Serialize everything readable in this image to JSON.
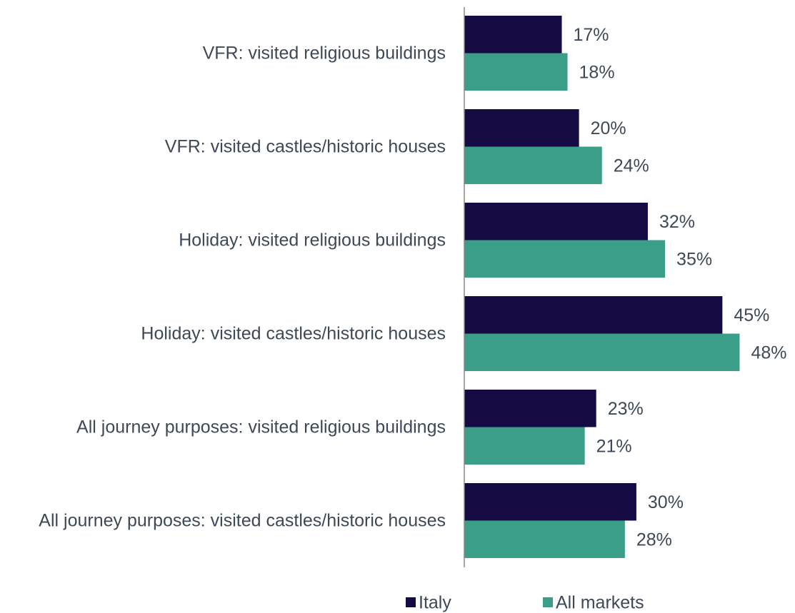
{
  "chart_data": {
    "type": "bar",
    "orientation": "horizontal",
    "categories": [
      "VFR: visited religious buildings",
      "VFR: visited castles/historic houses",
      "Holiday: visited religious buildings",
      "Holiday: visited castles/historic houses",
      "All journey purposes: visited religious buildings",
      "All journey purposes: visited castles/historic houses"
    ],
    "series": [
      {
        "name": "Italy",
        "color": "#150b42",
        "values": [
          17,
          20,
          32,
          45,
          23,
          30
        ],
        "value_labels": [
          "17%",
          "20%",
          "32%",
          "45%",
          "23%",
          "30%"
        ]
      },
      {
        "name": "All markets",
        "color": "#3a9e88",
        "values": [
          18,
          24,
          35,
          48,
          21,
          28
        ],
        "value_labels": [
          "18%",
          "24%",
          "35%",
          "48%",
          "21%",
          "28%"
        ]
      }
    ],
    "legend": "bottom"
  }
}
